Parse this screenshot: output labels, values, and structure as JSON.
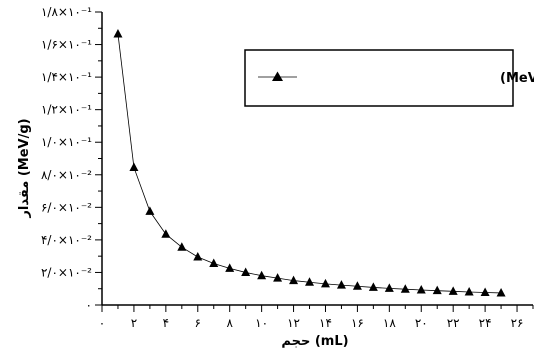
{
  "chart_data": {
    "type": "line",
    "xlabel": "حجم (mL)",
    "ylabel": "مقدار (MeV/g)",
    "xlim": [
      0,
      27
    ],
    "ylim": [
      0,
      0.18
    ],
    "x_ticks": [
      0,
      2,
      4,
      6,
      8,
      10,
      12,
      14,
      16,
      18,
      20,
      22,
      24,
      26
    ],
    "x_tick_labels": [
      "۰",
      "۲",
      "۴",
      "۶",
      "۸",
      "۱۰",
      "۱۲",
      "۱۴",
      "۱۶",
      "۱۸",
      "۲۰",
      "۲۲",
      "۲۴",
      "۲۶"
    ],
    "y_ticks": [
      0,
      0.02,
      0.04,
      0.06,
      0.08,
      0.1,
      0.12,
      0.14,
      0.16,
      0.18
    ],
    "y_tick_labels": [
      "۰",
      "۲/۰×۱۰⁻²",
      "۴/۰×۱۰⁻²",
      "۶/۰×۱۰⁻²",
      "۸/۰×۱۰⁻²",
      "۱/۰×۱۰⁻¹",
      "۱/۲×۱۰⁻¹",
      "۱/۴×۱۰⁻¹",
      "۱/۶×۱۰⁻¹",
      "۱/۸×۱۰⁻¹"
    ],
    "grid": false,
    "legend_position": "top-right",
    "series": [
      {
        "name": "انرژی ذخیره شده (MeV)",
        "color": "#000000",
        "marker": "triangle",
        "x": [
          1,
          2,
          3,
          4,
          5,
          6,
          7,
          8,
          9,
          10,
          11,
          12,
          13,
          14,
          15,
          16,
          17,
          18,
          19,
          20,
          21,
          22,
          23,
          24,
          25
        ],
        "y": [
          0.1665,
          0.0845,
          0.0575,
          0.0435,
          0.0355,
          0.0295,
          0.0255,
          0.0225,
          0.02,
          0.018,
          0.0165,
          0.015,
          0.014,
          0.013,
          0.0122,
          0.0115,
          0.0108,
          0.0102,
          0.0097,
          0.0092,
          0.0088,
          0.0084,
          0.008,
          0.0077,
          0.0074
        ]
      }
    ]
  }
}
